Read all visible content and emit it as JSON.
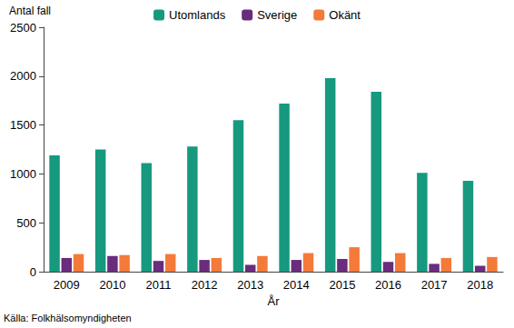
{
  "chart_data": {
    "type": "bar",
    "xlabel": "År",
    "ylabel": "Antal fall",
    "annotations": [
      "Källa: Folkhälsomyndigheten"
    ],
    "categories": [
      "2009",
      "2010",
      "2011",
      "2012",
      "2013",
      "2014",
      "2015",
      "2016",
      "2017",
      "2018"
    ],
    "series": [
      {
        "name": "Utomlands",
        "color": "#16997f",
        "values": [
          1190,
          1250,
          1110,
          1280,
          1550,
          1720,
          1980,
          1840,
          1010,
          930
        ]
      },
      {
        "name": "Sverige",
        "color": "#6a2c7c",
        "values": [
          140,
          160,
          110,
          120,
          70,
          120,
          130,
          100,
          80,
          60
        ]
      },
      {
        "name": "Okänt",
        "color": "#f47a3a",
        "values": [
          180,
          170,
          180,
          140,
          160,
          190,
          250,
          190,
          140,
          150
        ]
      }
    ],
    "ylim": [
      0,
      2500
    ],
    "yticks": [
      0,
      500,
      1000,
      1500,
      2000,
      2500
    ],
    "grid": false,
    "legend": "top"
  }
}
